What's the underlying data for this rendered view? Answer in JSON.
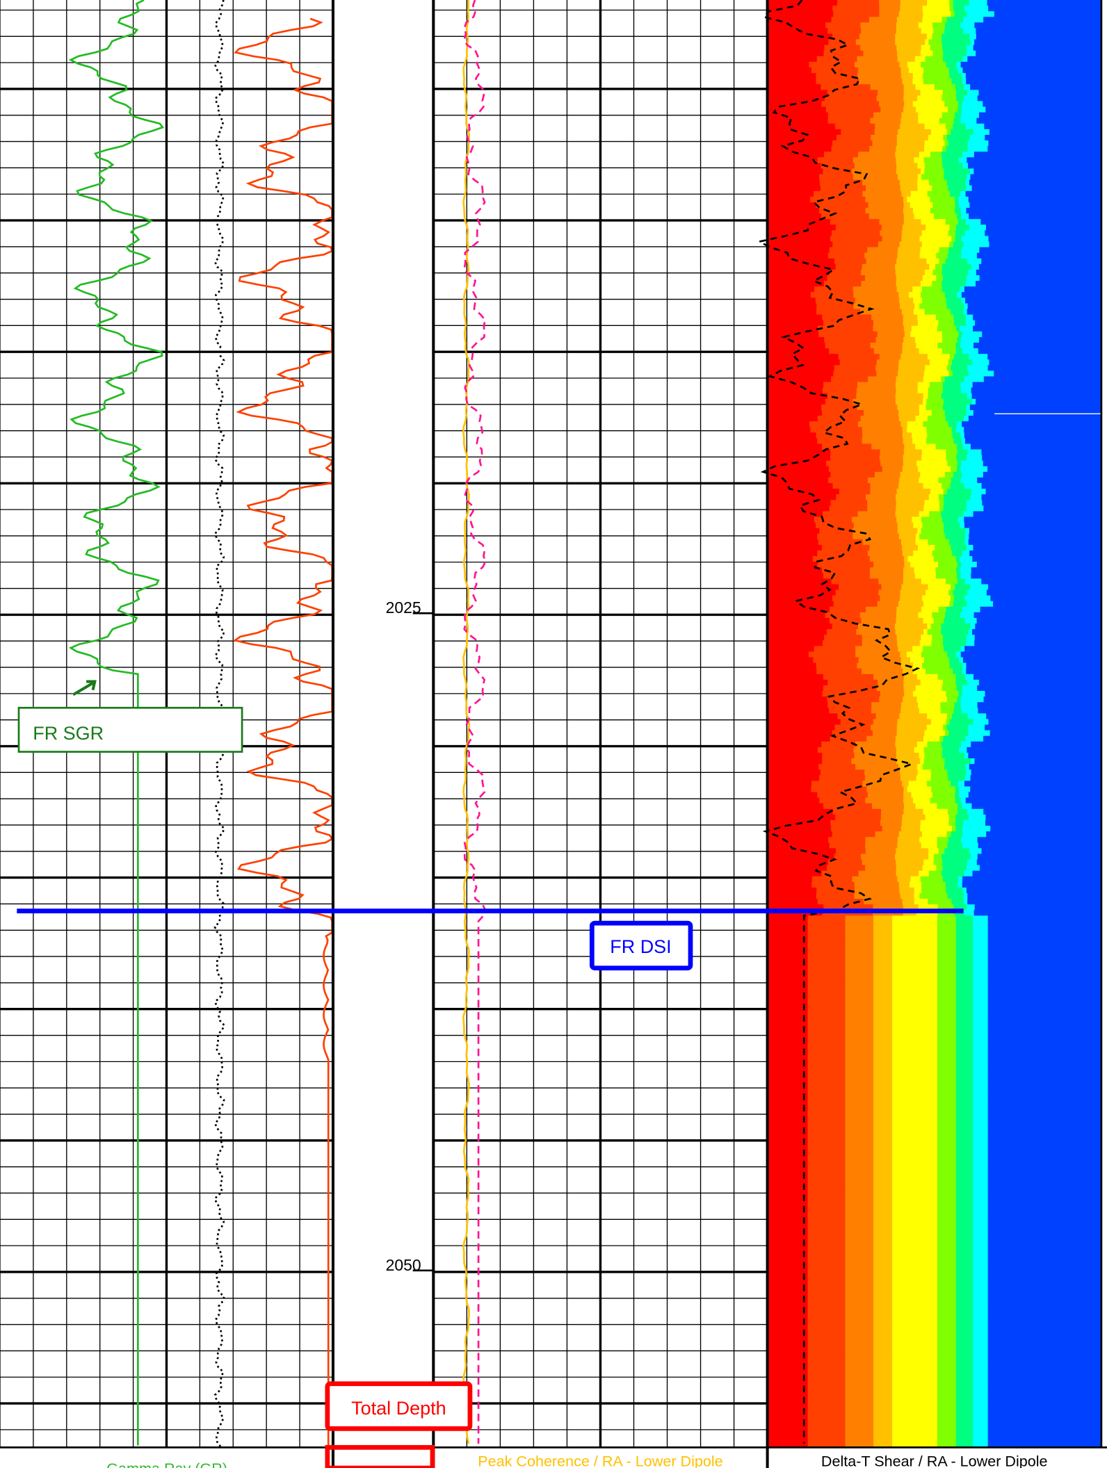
{
  "depth_labels": [
    "2025",
    "2050"
  ],
  "annotations": {
    "sgr": "FR SGR",
    "dsi": "FR DSI",
    "total_depth": "Total Depth"
  },
  "track_headers": [
    "Gamma Ray (GR)",
    "Peak Coherence / RA - Lower Dipole",
    "Delta-T Shear / RA - Lower Dipole"
  ]
}
